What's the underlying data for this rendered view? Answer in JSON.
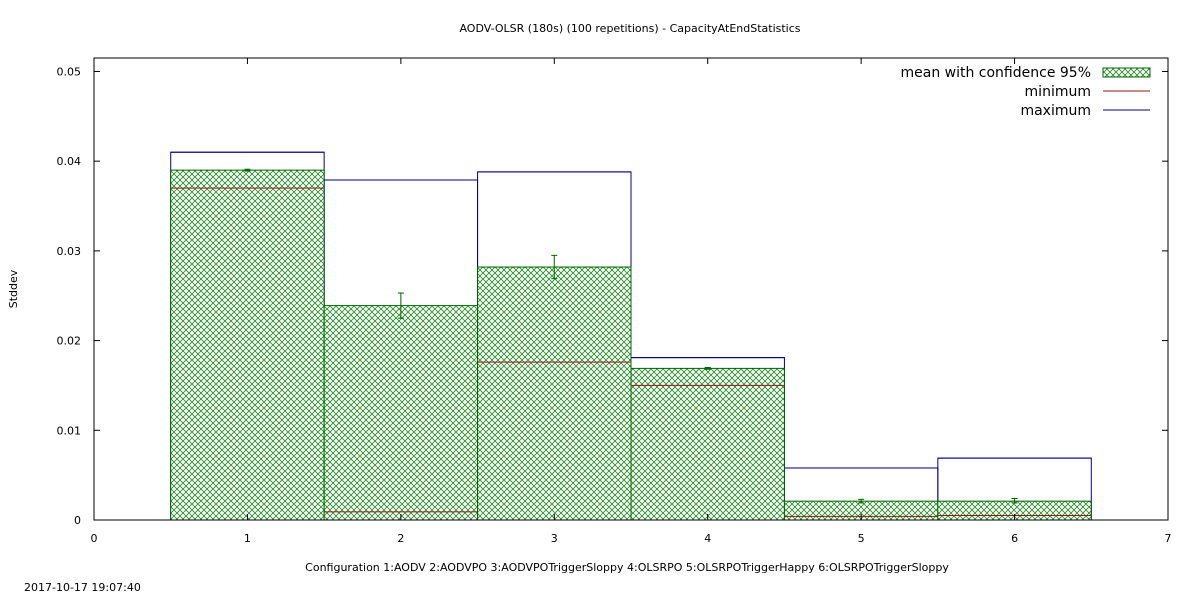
{
  "timestamp": "2017-10-17 19:07:40",
  "colors": {
    "mean_edge": "#006400",
    "mean_hatch": "#1f8a1f",
    "minimum": "#8b1a1a",
    "maximum": "#00008b",
    "axis": "#000000"
  },
  "chart_data": {
    "type": "bar",
    "title": "AODV-OLSR (180s) (100 repetitions) - CapacityAtEndStatistics",
    "xlabel": "Configuration 1:AODV  2:AODVPO  3:AODVPOTriggerSloppy  4:OLSRPO  5:OLSRPOTriggerHappy  6:OLSRPOTriggerSloppy",
    "ylabel": "Stddev",
    "xlim": [
      0,
      7
    ],
    "ylim": [
      0,
      0.0515
    ],
    "x_ticks": [
      "0",
      "1",
      "2",
      "3",
      "4",
      "5",
      "6",
      "7"
    ],
    "y_ticks": [
      "0",
      "0.01",
      "0.02",
      "0.03",
      "0.04",
      "0.05"
    ],
    "y_tick_values": [
      0,
      0.01,
      0.02,
      0.03,
      0.04,
      0.05
    ],
    "legend_position": "top-right",
    "legend": [
      "mean with confidence 95%",
      "minimum",
      "maximum"
    ],
    "x": [
      1,
      2,
      3,
      4,
      5,
      6
    ],
    "bar_width": 1,
    "series": [
      {
        "name": "mean with confidence 95%",
        "values": [
          0.039,
          0.0239,
          0.0282,
          0.0169,
          0.0021,
          0.0021
        ],
        "ci_low": [
          0.0389,
          0.0225,
          0.0269,
          0.0168,
          0.0019,
          0.0019
        ],
        "ci_high": [
          0.0391,
          0.0253,
          0.0295,
          0.017,
          0.0023,
          0.0024
        ]
      },
      {
        "name": "minimum",
        "values": [
          0.037,
          0.0009,
          0.0176,
          0.015,
          0.0004,
          0.0005
        ]
      },
      {
        "name": "maximum",
        "values": [
          0.041,
          0.0379,
          0.0388,
          0.0181,
          0.0058,
          0.0069
        ]
      }
    ]
  }
}
